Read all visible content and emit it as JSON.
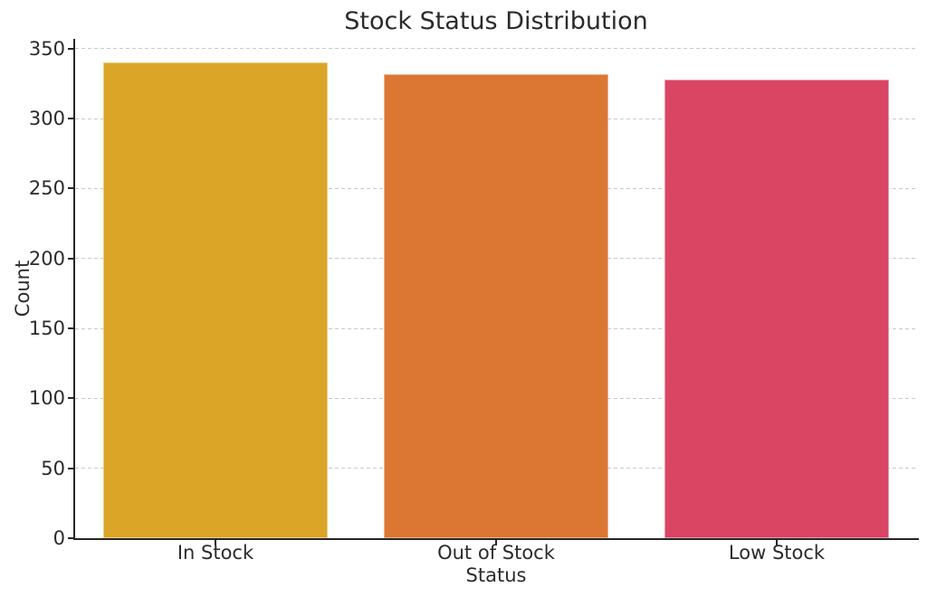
{
  "chart_data": {
    "type": "bar",
    "title": "Stock Status Distribution",
    "xlabel": "Status",
    "ylabel": "Count",
    "categories": [
      "In Stock",
      "Out of Stock",
      "Low Stock"
    ],
    "values": [
      340,
      332,
      328
    ],
    "bar_colors": [
      "#DBA628",
      "#DC7633",
      "#DB4564"
    ],
    "yticks": [
      0,
      50,
      100,
      150,
      200,
      250,
      300,
      350
    ],
    "ylim": [
      0,
      357
    ],
    "grid": "horizontal-dashed",
    "legend": "none"
  },
  "colors": {
    "background": "#ffffff",
    "text": "#2b2b2b",
    "spine": "#262626",
    "gridline": "#c9c9c9"
  }
}
